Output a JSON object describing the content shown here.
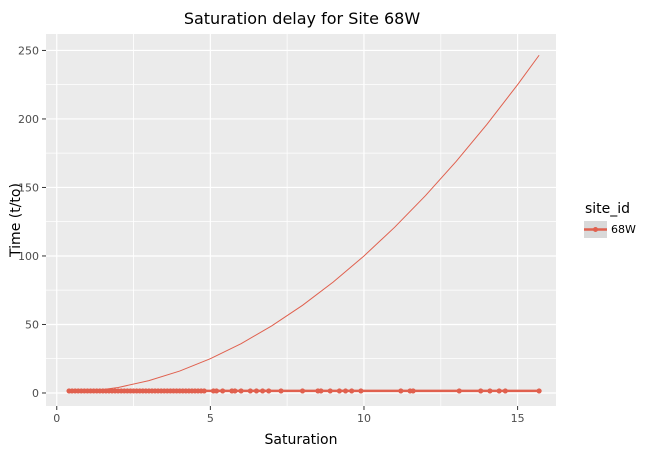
{
  "chart_data": {
    "type": "scatter",
    "title": "Saturation delay for Site 68W",
    "xlabel": "Saturation",
    "ylabel": "Time (t/to)",
    "xlim": [
      -0.35,
      16.25
    ],
    "ylim": [
      -9.5,
      262
    ],
    "x_ticks": [
      0,
      5,
      10,
      15
    ],
    "y_ticks": [
      0,
      50,
      100,
      150,
      200,
      250
    ],
    "grid": true,
    "legend": {
      "title": "site_id",
      "position": "right",
      "entries": [
        "68W"
      ]
    },
    "colors": {
      "series": "#e0604e",
      "panel": "#ebebeb",
      "grid": "#ffffff"
    },
    "series": [
      {
        "name": "68W",
        "type": "scatter+line",
        "x": [
          0.4,
          0.5,
          0.6,
          0.7,
          0.8,
          0.9,
          1.0,
          1.1,
          1.2,
          1.3,
          1.4,
          1.5,
          1.6,
          1.7,
          1.8,
          1.9,
          2.0,
          2.1,
          2.2,
          2.3,
          2.4,
          2.5,
          2.6,
          2.7,
          2.8,
          2.9,
          3.0,
          3.1,
          3.2,
          3.3,
          3.4,
          3.5,
          3.6,
          3.7,
          3.8,
          3.9,
          4.0,
          4.1,
          4.2,
          4.3,
          4.4,
          4.5,
          4.6,
          4.7,
          4.8,
          5.1,
          5.2,
          5.4,
          5.7,
          5.8,
          6.0,
          6.3,
          6.5,
          6.7,
          6.9,
          7.3,
          8.0,
          8.5,
          8.6,
          8.9,
          9.2,
          9.4,
          9.6,
          9.9,
          11.2,
          11.5,
          11.6,
          13.1,
          13.8,
          14.1,
          14.4,
          14.6,
          15.7
        ],
        "y": [
          1.5,
          1.5,
          1.5,
          1.5,
          1.5,
          1.5,
          1.5,
          1.5,
          1.5,
          1.5,
          1.5,
          1.5,
          1.5,
          1.5,
          1.5,
          1.5,
          1.5,
          1.5,
          1.5,
          1.5,
          1.5,
          1.5,
          1.5,
          1.5,
          1.5,
          1.5,
          1.5,
          1.5,
          1.5,
          1.5,
          1.5,
          1.5,
          1.5,
          1.5,
          1.5,
          1.5,
          1.5,
          1.5,
          1.5,
          1.5,
          1.5,
          1.5,
          1.5,
          1.5,
          1.5,
          1.5,
          1.5,
          1.5,
          1.5,
          1.5,
          1.5,
          1.5,
          1.5,
          1.5,
          1.5,
          1.5,
          1.5,
          1.5,
          1.5,
          1.5,
          1.5,
          1.5,
          1.5,
          1.5,
          1.5,
          1.5,
          1.5,
          1.5,
          1.5,
          1.5,
          1.5,
          1.5,
          1.5
        ]
      },
      {
        "type": "line",
        "x": [
          0.4,
          1,
          2,
          3,
          4,
          5,
          6,
          7,
          8,
          9,
          10,
          11,
          12,
          13,
          14,
          15,
          15.7
        ],
        "y": [
          0.16,
          1,
          4,
          9,
          16,
          25,
          36,
          49,
          64,
          81,
          100,
          121,
          144,
          169,
          196,
          225,
          246.5
        ]
      }
    ]
  }
}
